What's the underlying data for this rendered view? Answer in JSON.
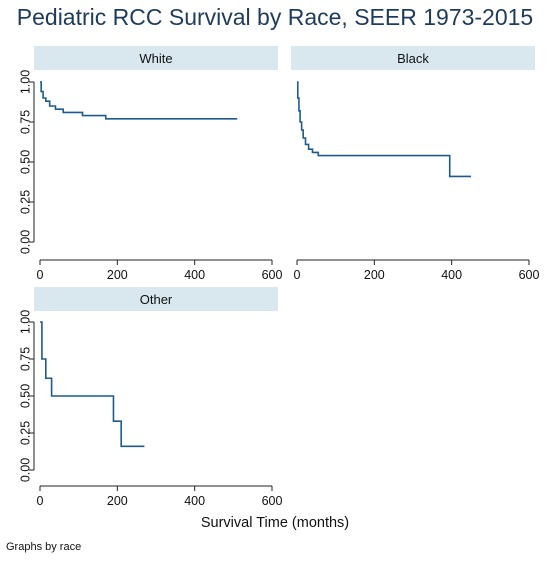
{
  "title": "Pediatric RCC Survival by Race, SEER 1973-2015",
  "xlabel": "Survival Time (months)",
  "note": "Graphs by race",
  "colors": {
    "line": "#1f5a8a",
    "header": "#d9e8ef",
    "axis": "#222222"
  },
  "chart_data": {
    "type": "line",
    "subtype": "kaplan-meier step",
    "xlim": [
      0,
      600
    ],
    "ylim": [
      0,
      1
    ],
    "xticks": [
      "0",
      "200",
      "400",
      "600"
    ],
    "yticks": [
      "0.00",
      "0.25",
      "0.50",
      "0.75",
      "1.00"
    ],
    "grid": false,
    "panels": [
      {
        "name": "White",
        "x": [
          0,
          3,
          8,
          15,
          25,
          40,
          60,
          110,
          170,
          510
        ],
        "y": [
          1.0,
          0.94,
          0.9,
          0.88,
          0.85,
          0.83,
          0.81,
          0.79,
          0.77,
          0.77
        ]
      },
      {
        "name": "Black",
        "x": [
          0,
          2,
          5,
          8,
          12,
          16,
          22,
          30,
          40,
          55,
          395,
          450
        ],
        "y": [
          1.0,
          0.9,
          0.82,
          0.75,
          0.7,
          0.65,
          0.61,
          0.58,
          0.56,
          0.54,
          0.41,
          0.41
        ]
      },
      {
        "name": "Other",
        "x": [
          0,
          5,
          15,
          30,
          190,
          200,
          210,
          270
        ],
        "y": [
          1.0,
          0.75,
          0.62,
          0.5,
          0.33,
          0.33,
          0.16,
          0.16
        ]
      }
    ]
  }
}
